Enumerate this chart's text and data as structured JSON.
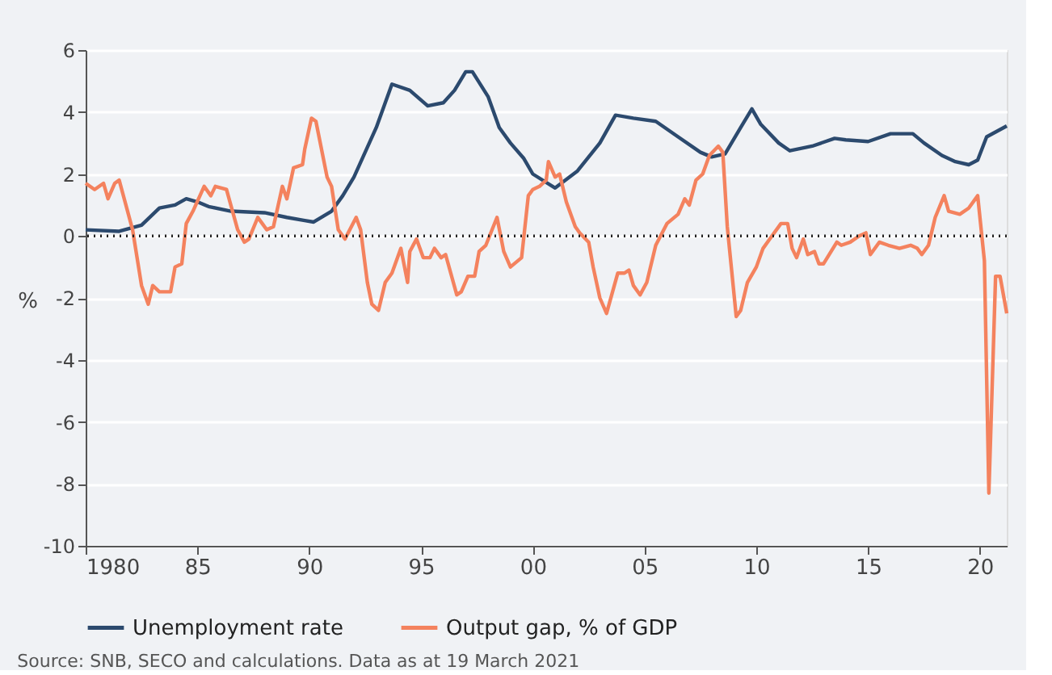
{
  "chart_data": {
    "type": "line",
    "ylabel": "%",
    "xlim": [
      1980,
      2021.2
    ],
    "xticks": [
      {
        "value": 1980,
        "label": "1980"
      },
      {
        "value": 1985,
        "label": "85"
      },
      {
        "value": 1990,
        "label": "90"
      },
      {
        "value": 1995,
        "label": "95"
      },
      {
        "value": 2000,
        "label": "00"
      },
      {
        "value": 2005,
        "label": "05"
      },
      {
        "value": 2010,
        "label": "10"
      },
      {
        "value": 2015,
        "label": "15"
      },
      {
        "value": 2020,
        "label": "20"
      }
    ],
    "ylim": [
      -10,
      6
    ],
    "yticks": [
      -10,
      -8,
      -6,
      -4,
      -2,
      0,
      2,
      4,
      6
    ],
    "grid": "y",
    "legend": "bottom",
    "ref_lines": [
      {
        "axis": "y",
        "value": 0,
        "color": "#222222",
        "line_style": "dotted"
      }
    ],
    "series": [
      {
        "name": "Unemployment rate",
        "color": "#2c4a6e",
        "x": [
          1980,
          1981.5,
          1982.5,
          1983.3,
          1984,
          1984.5,
          1985,
          1985.5,
          1986.5,
          1988,
          1989,
          1989.8,
          1990.2,
          1991,
          1991.5,
          1992,
          1993,
          1993.7,
          1994.5,
          1995.3,
          1996,
          1996.5,
          1997,
          1997.3,
          1998,
          1998.5,
          1999,
          1999.6,
          2000,
          2001,
          2002,
          2003,
          2003.7,
          2004.5,
          2005.5,
          2006.5,
          2007.5,
          2008,
          2008.6,
          2009.3,
          2009.8,
          2010.2,
          2011,
          2011.5,
          2012.5,
          2013.5,
          2014,
          2015,
          2016,
          2017,
          2017.5,
          2018.3,
          2018.9,
          2019.5,
          2019.9,
          2020.3,
          2021.2
        ],
        "values": [
          0.2,
          0.15,
          0.35,
          0.9,
          1.0,
          1.2,
          1.1,
          0.95,
          0.8,
          0.75,
          0.6,
          0.5,
          0.45,
          0.8,
          1.3,
          1.9,
          3.5,
          4.9,
          4.7,
          4.2,
          4.3,
          4.7,
          5.3,
          5.3,
          4.5,
          3.5,
          3.0,
          2.5,
          2.0,
          1.55,
          2.1,
          3.0,
          3.9,
          3.8,
          3.7,
          3.2,
          2.7,
          2.55,
          2.65,
          3.5,
          4.1,
          3.6,
          3.0,
          2.75,
          2.9,
          3.15,
          3.1,
          3.05,
          3.3,
          3.3,
          3.0,
          2.6,
          2.4,
          2.3,
          2.45,
          3.2,
          3.55
        ]
      },
      {
        "name": "Output gap, % of GDP",
        "color": "#f4825e",
        "x": [
          1980,
          1980.4,
          1980.8,
          1981.0,
          1981.3,
          1981.5,
          1982.1,
          1982.5,
          1982.8,
          1983.0,
          1983.3,
          1983.8,
          1984.0,
          1984.3,
          1984.5,
          1984.8,
          1985.3,
          1985.6,
          1985.8,
          1986.3,
          1986.8,
          1987.1,
          1987.3,
          1987.7,
          1987.9,
          1988.1,
          1988.4,
          1988.8,
          1989.0,
          1989.3,
          1989.7,
          1989.8,
          1990.1,
          1990.3,
          1990.8,
          1991.0,
          1991.3,
          1991.6,
          1992.1,
          1992.3,
          1992.6,
          1992.8,
          1993.1,
          1993.4,
          1993.7,
          1994.1,
          1994.4,
          1994.5,
          1994.8,
          1995.1,
          1995.4,
          1995.6,
          1995.9,
          1996.1,
          1996.6,
          1996.8,
          1997.1,
          1997.4,
          1997.6,
          1997.9,
          1998.4,
          1998.7,
          1999.0,
          1999.5,
          1999.8,
          2000.0,
          2000.3,
          2000.6,
          2000.7,
          2001.0,
          2001.2,
          2001.5,
          2001.9,
          2002.1,
          2002.5,
          2002.7,
          2003.0,
          2003.3,
          2003.8,
          2004.1,
          2004.3,
          2004.5,
          2004.8,
          2005.1,
          2005.5,
          2006.0,
          2006.5,
          2006.8,
          2007.0,
          2007.3,
          2007.6,
          2007.9,
          2008.3,
          2008.5,
          2008.7,
          2009.1,
          2009.3,
          2009.6,
          2010.0,
          2010.3,
          2010.6,
          2011.1,
          2011.4,
          2011.6,
          2011.8,
          2012.1,
          2012.3,
          2012.6,
          2012.8,
          2013.0,
          2013.6,
          2013.8,
          2014.2,
          2014.6,
          2014.9,
          2015.1,
          2015.5,
          2015.9,
          2016.4,
          2016.9,
          2017.2,
          2017.4,
          2017.7,
          2018.0,
          2018.4,
          2018.6,
          2019.1,
          2019.5,
          2019.9,
          2020.2,
          2020.4,
          2020.7,
          2020.9,
          2021.2
        ],
        "values": [
          1.7,
          1.5,
          1.7,
          1.2,
          1.7,
          1.8,
          0.2,
          -1.6,
          -2.2,
          -1.6,
          -1.8,
          -1.8,
          -1.0,
          -0.9,
          0.4,
          0.8,
          1.6,
          1.3,
          1.6,
          1.5,
          0.2,
          -0.2,
          -0.1,
          0.6,
          0.4,
          0.2,
          0.3,
          1.6,
          1.2,
          2.2,
          2.3,
          2.8,
          3.8,
          3.7,
          1.9,
          1.6,
          0.2,
          -0.1,
          0.6,
          0.2,
          -1.5,
          -2.2,
          -2.4,
          -1.5,
          -1.2,
          -0.4,
          -1.5,
          -0.5,
          -0.1,
          -0.7,
          -0.7,
          -0.4,
          -0.7,
          -0.6,
          -1.9,
          -1.8,
          -1.3,
          -1.3,
          -0.5,
          -0.3,
          0.6,
          -0.5,
          -1.0,
          -0.7,
          1.3,
          1.5,
          1.6,
          1.8,
          2.4,
          1.9,
          2.0,
          1.1,
          0.3,
          0.1,
          -0.2,
          -1.0,
          -2.0,
          -2.5,
          -1.2,
          -1.2,
          -1.1,
          -1.6,
          -1.9,
          -1.5,
          -0.3,
          0.4,
          0.7,
          1.2,
          1.0,
          1.8,
          2.0,
          2.6,
          2.9,
          2.7,
          0.3,
          -2.6,
          -2.4,
          -1.5,
          -1.0,
          -0.4,
          -0.1,
          0.4,
          0.4,
          -0.4,
          -0.7,
          -0.1,
          -0.6,
          -0.5,
          -0.9,
          -0.9,
          -0.2,
          -0.3,
          -0.2,
          0.0,
          0.1,
          -0.6,
          -0.2,
          -0.3,
          -0.4,
          -0.3,
          -0.4,
          -0.6,
          -0.3,
          0.6,
          1.3,
          0.8,
          0.7,
          0.9,
          1.3,
          -0.8,
          -8.3,
          -1.3,
          -1.3,
          -2.5
        ]
      }
    ],
    "annotations": [
      "Source: SNB, SECO and calculations. Data as at 19 March 2021"
    ]
  }
}
